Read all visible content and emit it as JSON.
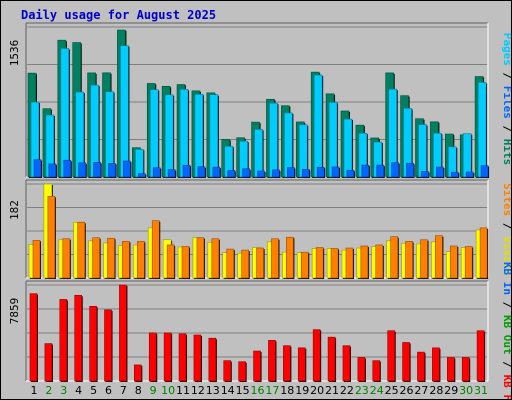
{
  "chart_data": {
    "type": "bar",
    "title": "Daily usage for August 2025",
    "categories": [
      "1",
      "2",
      "3",
      "4",
      "5",
      "6",
      "7",
      "8",
      "9",
      "10",
      "11",
      "12",
      "13",
      "14",
      "15",
      "16",
      "17",
      "18",
      "19",
      "20",
      "21",
      "22",
      "23",
      "24",
      "25",
      "26",
      "27",
      "28",
      "29",
      "30",
      "31"
    ],
    "weekend_days": [
      "2",
      "3",
      "9",
      "10",
      "16",
      "17",
      "23",
      "24",
      "30",
      "31"
    ],
    "panels": [
      {
        "name": "pages-files-hits",
        "ytick": "1536",
        "ylim": [
          0,
          1536
        ],
        "right_label": [
          {
            "text": "Pages",
            "color": "#00ccff"
          },
          {
            "text": " / ",
            "color": "#000000"
          },
          {
            "text": "Files",
            "color": "#0066ff"
          },
          {
            "text": " / ",
            "color": "#000000"
          },
          {
            "text": "Hits",
            "color": "#008060"
          }
        ],
        "series": [
          {
            "name": "Hits",
            "color": "#008060",
            "values": [
              1064,
              700,
              1401,
              1377,
              1066,
              1067,
              1505,
              300,
              958,
              929,
              947,
              882,
              862,
              385,
              402,
              562,
              796,
              730,
              564,
              1074,
              852,
              676,
              531,
              400,
              1066,
              833,
              597,
              565,
              440,
              432,
              1029
            ]
          },
          {
            "name": "Files",
            "color": "#00ccff",
            "values": [
              767,
              635,
              1316,
              870,
              941,
              874,
              1345,
              283,
              895,
              842,
              897,
              847,
              843,
              315,
              367,
              488,
              756,
              656,
              535,
              1044,
              764,
              593,
              448,
              358,
              900,
              703,
              537,
              448,
              309,
              443,
              968
            ]
          },
          {
            "name": "Pages",
            "color": "#0066ff",
            "values": [
              178,
              134,
              172,
              145,
              150,
              140,
              164,
              34,
              95,
              76,
              120,
              105,
              101,
              68,
              84,
              61,
              73,
              97,
              79,
              100,
              103,
              69,
              122,
              122,
              146,
              141,
              57,
              102,
              49,
              51,
              116
            ]
          }
        ]
      },
      {
        "name": "visits-sites",
        "ytick": "182",
        "ylim": [
          0,
          182
        ],
        "right_label": [
          {
            "text": "Sites",
            "color": "#ff8000"
          },
          {
            "text": " / ",
            "color": "#000000"
          },
          {
            "text": "Visits",
            "color": "#e0e000"
          }
        ],
        "series": [
          {
            "name": "Visits",
            "color": "#ffff00",
            "values": [
              65,
              182,
              74,
              108,
              72,
              68,
              63,
              64,
              97,
              74,
              60,
              78,
              69,
              49,
              48,
              59,
              70,
              50,
              49,
              57,
              57,
              54,
              58,
              61,
              72,
              67,
              66,
              70,
              51,
              59,
              93
            ]
          },
          {
            "name": "Sites",
            "color": "#ff8000",
            "values": [
              73,
              158,
              76,
              108,
              78,
              77,
              71,
              71,
              111,
              64,
              61,
              78,
              76,
              56,
              54,
              58,
              76,
              79,
              50,
              59,
              57,
              58,
              62,
              64,
              80,
              71,
              74,
              82,
              62,
              61,
              97
            ]
          }
        ]
      },
      {
        "name": "kbytes",
        "ytick": "7859",
        "ylim": [
          0,
          7859
        ],
        "right_label": [
          {
            "text": "KB In",
            "color": "#0066ff"
          },
          {
            "text": " / ",
            "color": "#000000"
          },
          {
            "text": "KB Out",
            "color": "#00a000"
          },
          {
            "text": " / ",
            "color": "#000000"
          },
          {
            "text": "KB F",
            "color": "#ff0000"
          }
        ],
        "series": [
          {
            "name": "KB F",
            "color": "#ff0000",
            "values": [
              7148,
              3064,
              6679,
              7013,
              6116,
              5819,
              7859,
              1315,
              3942,
              3942,
              3855,
              3767,
              3504,
              1665,
              1577,
              2453,
              3329,
              2891,
              2716,
              4204,
              3592,
              2891,
              1928,
              1665,
              4116,
              3154,
              2365,
              2716,
              1928,
              1928,
              4116
            ]
          }
        ]
      }
    ]
  }
}
